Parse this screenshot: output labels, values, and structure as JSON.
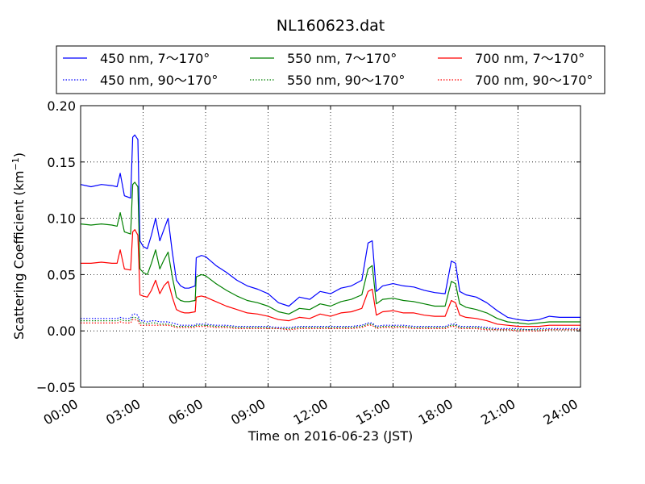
{
  "chart_data": {
    "type": "line",
    "title": "NL160623.dat",
    "xlabel": "Time on 2016-06-23 (JST)",
    "ylabel_main": "Scattering Coefficient (km",
    "ylabel_sup": "−1",
    "ylabel_close": ")",
    "xlim": [
      0,
      24
    ],
    "ylim": [
      -0.05,
      0.2
    ],
    "x_ticks": [
      0,
      3,
      6,
      9,
      12,
      15,
      18,
      21,
      24
    ],
    "x_tick_labels": [
      "00:00",
      "03:00",
      "06:00",
      "09:00",
      "12:00",
      "15:00",
      "18:00",
      "21:00",
      "24:00"
    ],
    "y_ticks": [
      -0.05,
      0,
      0.05,
      0.1,
      0.15,
      0.2
    ],
    "y_tick_labels": [
      "−0.05",
      "0.00",
      "0.05",
      "0.10",
      "0.15",
      "0.20"
    ],
    "grid": true,
    "legend_position": "top, above plot",
    "x": [
      0,
      0.5,
      1,
      1.5,
      1.75,
      1.9,
      2.1,
      2.4,
      2.5,
      2.6,
      2.75,
      2.85,
      3,
      3.2,
      3.4,
      3.6,
      3.8,
      4,
      4.2,
      4.4,
      4.6,
      4.8,
      5,
      5.2,
      5.5,
      5.55,
      5.8,
      6,
      6.5,
      7,
      7.5,
      8,
      8.5,
      9,
      9.5,
      10,
      10.5,
      11,
      11.5,
      12,
      12.5,
      13,
      13.5,
      13.8,
      14,
      14.2,
      14.5,
      15,
      15.5,
      16,
      16.5,
      17,
      17.5,
      17.8,
      18,
      18.2,
      18.5,
      19,
      19.5,
      20,
      20.5,
      21,
      21.5,
      22,
      22.5,
      23,
      23.5,
      24
    ],
    "series": [
      {
        "name": "450 nm, 7～170°",
        "color": "#0000ff",
        "style": "solid",
        "values": [
          0.13,
          0.128,
          0.13,
          0.129,
          0.128,
          0.14,
          0.12,
          0.118,
          0.172,
          0.174,
          0.17,
          0.08,
          0.075,
          0.073,
          0.085,
          0.1,
          0.08,
          0.09,
          0.1,
          0.07,
          0.045,
          0.04,
          0.038,
          0.038,
          0.04,
          0.065,
          0.067,
          0.066,
          0.058,
          0.052,
          0.045,
          0.04,
          0.037,
          0.033,
          0.025,
          0.022,
          0.03,
          0.028,
          0.035,
          0.033,
          0.038,
          0.04,
          0.045,
          0.078,
          0.08,
          0.035,
          0.04,
          0.042,
          0.04,
          0.039,
          0.036,
          0.034,
          0.033,
          0.062,
          0.06,
          0.035,
          0.032,
          0.03,
          0.025,
          0.018,
          0.012,
          0.01,
          0.009,
          0.01,
          0.013,
          0.012,
          0.012,
          0.012
        ]
      },
      {
        "name": "450 nm, 90～170°",
        "color": "#0000ff",
        "style": "dotted",
        "values": [
          0.011,
          0.011,
          0.011,
          0.011,
          0.011,
          0.012,
          0.011,
          0.011,
          0.015,
          0.015,
          0.014,
          0.009,
          0.009,
          0.008,
          0.009,
          0.009,
          0.008,
          0.008,
          0.008,
          0.007,
          0.006,
          0.005,
          0.005,
          0.005,
          0.005,
          0.006,
          0.006,
          0.006,
          0.005,
          0.005,
          0.004,
          0.004,
          0.004,
          0.004,
          0.003,
          0.003,
          0.004,
          0.004,
          0.004,
          0.004,
          0.004,
          0.004,
          0.005,
          0.007,
          0.007,
          0.004,
          0.005,
          0.005,
          0.005,
          0.004,
          0.004,
          0.004,
          0.004,
          0.006,
          0.006,
          0.004,
          0.004,
          0.004,
          0.003,
          0.002,
          0.002,
          0.002,
          0.001,
          0.002,
          0.002,
          0.002,
          0.002,
          0.002
        ]
      },
      {
        "name": "550 nm, 7～170°",
        "color": "#008000",
        "style": "solid",
        "values": [
          0.095,
          0.094,
          0.095,
          0.094,
          0.093,
          0.105,
          0.088,
          0.086,
          0.13,
          0.132,
          0.128,
          0.055,
          0.052,
          0.05,
          0.06,
          0.072,
          0.055,
          0.063,
          0.07,
          0.048,
          0.03,
          0.027,
          0.026,
          0.026,
          0.027,
          0.048,
          0.05,
          0.049,
          0.042,
          0.036,
          0.031,
          0.027,
          0.025,
          0.022,
          0.017,
          0.015,
          0.02,
          0.019,
          0.024,
          0.022,
          0.026,
          0.028,
          0.032,
          0.055,
          0.058,
          0.024,
          0.028,
          0.029,
          0.027,
          0.026,
          0.024,
          0.022,
          0.022,
          0.044,
          0.042,
          0.024,
          0.021,
          0.019,
          0.016,
          0.011,
          0.008,
          0.007,
          0.006,
          0.007,
          0.008,
          0.008,
          0.008,
          0.008
        ]
      },
      {
        "name": "550 nm, 90～170°",
        "color": "#008000",
        "style": "dotted",
        "values": [
          0.009,
          0.009,
          0.009,
          0.009,
          0.009,
          0.01,
          0.009,
          0.009,
          0.012,
          0.012,
          0.011,
          0.007,
          0.007,
          0.006,
          0.007,
          0.007,
          0.006,
          0.006,
          0.006,
          0.005,
          0.004,
          0.004,
          0.004,
          0.004,
          0.004,
          0.005,
          0.005,
          0.005,
          0.004,
          0.004,
          0.003,
          0.003,
          0.003,
          0.003,
          0.002,
          0.002,
          0.003,
          0.003,
          0.003,
          0.003,
          0.003,
          0.003,
          0.004,
          0.006,
          0.006,
          0.003,
          0.004,
          0.004,
          0.004,
          0.003,
          0.003,
          0.003,
          0.003,
          0.005,
          0.005,
          0.003,
          0.003,
          0.003,
          0.002,
          0.001,
          0.001,
          0.001,
          0.001,
          0.001,
          0.001,
          0.001,
          0.001,
          0.001
        ]
      },
      {
        "name": "700 nm, 7～170°",
        "color": "#ff0000",
        "style": "solid",
        "values": [
          0.06,
          0.06,
          0.061,
          0.06,
          0.06,
          0.072,
          0.055,
          0.054,
          0.088,
          0.09,
          0.085,
          0.032,
          0.031,
          0.03,
          0.036,
          0.045,
          0.033,
          0.04,
          0.044,
          0.03,
          0.019,
          0.017,
          0.016,
          0.016,
          0.017,
          0.03,
          0.031,
          0.03,
          0.026,
          0.022,
          0.019,
          0.016,
          0.015,
          0.013,
          0.01,
          0.009,
          0.012,
          0.011,
          0.015,
          0.013,
          0.016,
          0.017,
          0.02,
          0.035,
          0.037,
          0.014,
          0.017,
          0.018,
          0.016,
          0.016,
          0.014,
          0.013,
          0.013,
          0.027,
          0.025,
          0.014,
          0.012,
          0.011,
          0.009,
          0.006,
          0.005,
          0.004,
          0.004,
          0.004,
          0.005,
          0.005,
          0.005,
          0.005
        ]
      },
      {
        "name": "700 nm, 90～170°",
        "color": "#ff0000",
        "style": "dotted",
        "values": [
          0.007,
          0.007,
          0.007,
          0.007,
          0.007,
          0.008,
          0.007,
          0.007,
          0.01,
          0.01,
          0.009,
          0.005,
          0.005,
          0.005,
          0.005,
          0.005,
          0.005,
          0.005,
          0.005,
          0.004,
          0.003,
          0.003,
          0.003,
          0.003,
          0.003,
          0.004,
          0.004,
          0.004,
          0.003,
          0.003,
          0.002,
          0.002,
          0.002,
          0.002,
          0.002,
          0.001,
          0.002,
          0.002,
          0.002,
          0.002,
          0.002,
          0.002,
          0.003,
          0.005,
          0.005,
          0.002,
          0.003,
          0.003,
          0.003,
          0.002,
          0.002,
          0.002,
          0.002,
          0.004,
          0.004,
          0.002,
          0.002,
          0.002,
          0.001,
          0.001,
          0.001,
          0.0,
          0.0,
          0.0,
          0.001,
          0.001,
          0.001,
          0.001
        ]
      }
    ]
  }
}
